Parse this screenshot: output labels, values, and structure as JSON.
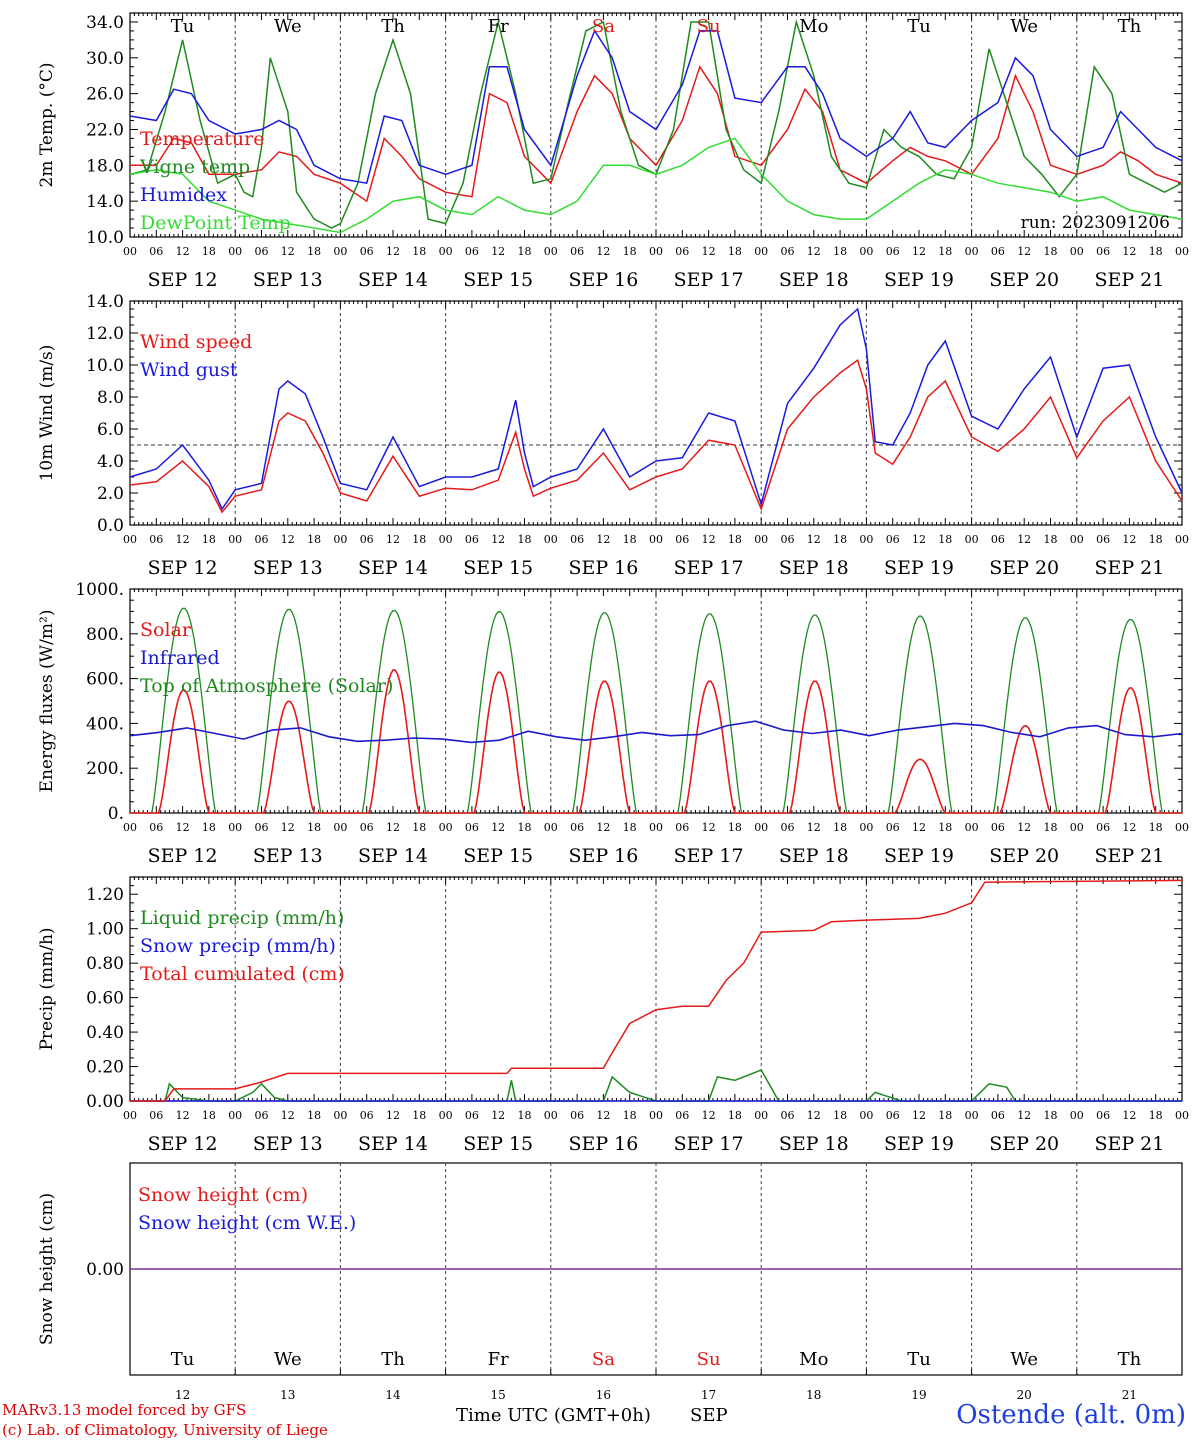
{
  "colors": {
    "red": "#e41a1a",
    "green": "#1f8a1f",
    "blue": "#1a1adc",
    "lightgreen": "#33dd33",
    "darkblue": "#1a1acc",
    "purple": "#7a2a9a",
    "station": "#1f3fe0"
  },
  "days": {
    "top": [
      "Tu",
      "We",
      "Th",
      "Fr",
      "Sa",
      "Su",
      "Mo",
      "Tu",
      "We",
      "Th"
    ],
    "numbers": [
      "12",
      "13",
      "14",
      "15",
      "16",
      "17",
      "18",
      "19",
      "20",
      "21"
    ],
    "dates": [
      "SEP 12",
      "SEP 13",
      "SEP 14",
      "SEP 15",
      "SEP 16",
      "SEP 17",
      "SEP 18",
      "SEP 19",
      "SEP 20",
      "SEP 21"
    ],
    "weekend": [
      false,
      false,
      false,
      false,
      true,
      true,
      false,
      false,
      false,
      false
    ],
    "hour_ticks": [
      "00",
      "06",
      "12",
      "18"
    ],
    "end_tick": "00"
  },
  "footer": {
    "credit1": "MARv3.13 model forced by GFS",
    "credit2": "(c) Lab. of Climatology, University of Liege",
    "time_label": "Time UTC (GMT+0h)",
    "month": "SEP",
    "station": "Ostende (alt. 0m)"
  },
  "chart_data": [
    {
      "type": "line",
      "ylabel": "2m Temp. (°C)",
      "ylim": [
        10,
        35
      ],
      "yticks": [
        "10.0",
        "14.0",
        "18.0",
        "22.0",
        "26.0",
        "30.0",
        "34.0"
      ],
      "ytick_values": [
        10,
        14,
        18,
        22,
        26,
        30,
        34
      ],
      "annotation": "run: 2023091206",
      "x_unit": "hours since Sep 12 00 UTC",
      "series": [
        {
          "name": "Temperature",
          "color": "red",
          "x": [
            0,
            6,
            10,
            14,
            18,
            24,
            30,
            34,
            38,
            42,
            48,
            54,
            58,
            62,
            66,
            72,
            78,
            82,
            86,
            90,
            96,
            102,
            106,
            110,
            114,
            120,
            126,
            130,
            134,
            138,
            144,
            150,
            154,
            158,
            162,
            168,
            174,
            178,
            182,
            186,
            192,
            198,
            202,
            206,
            210,
            216,
            222,
            226,
            230,
            234,
            240
          ],
          "y": [
            18,
            18,
            21,
            20.5,
            17,
            17,
            17.5,
            19.5,
            19,
            17,
            16,
            14,
            21,
            19,
            16.5,
            15,
            14.5,
            26,
            25,
            19,
            16,
            24,
            28,
            26,
            21,
            18,
            23,
            29,
            26,
            19,
            18,
            22,
            26.5,
            24,
            17.5,
            16,
            18.5,
            20,
            19,
            18.5,
            17,
            21,
            28,
            24,
            18,
            17,
            18,
            19.5,
            18.5,
            17,
            16
          ]
        },
        {
          "name": "Vigne temp",
          "color": "green",
          "x": [
            0,
            4,
            8,
            12,
            16,
            20,
            24,
            26,
            28,
            30,
            32,
            34,
            36,
            38,
            42,
            46,
            48,
            52,
            56,
            60,
            64,
            68,
            72,
            76,
            80,
            84,
            88,
            92,
            96,
            100,
            104,
            108,
            112,
            116,
            120,
            124,
            128,
            132,
            136,
            140,
            144,
            148,
            152,
            156,
            160,
            164,
            168,
            172,
            176,
            180,
            184,
            188,
            192,
            196,
            200,
            204,
            208,
            212,
            216,
            220,
            224,
            228,
            232,
            236,
            240
          ],
          "y": [
            17,
            17.5,
            24,
            32,
            23,
            16,
            17,
            15,
            14.5,
            20,
            30,
            27,
            24,
            15,
            12,
            11,
            11.5,
            16,
            26,
            32,
            26,
            12,
            11.5,
            16,
            26,
            34,
            26,
            16,
            16.5,
            25,
            33,
            34,
            24,
            18,
            17,
            22,
            34,
            34,
            22,
            17.5,
            16,
            24,
            34,
            28,
            19,
            16,
            15.5,
            22,
            20,
            19,
            17,
            16.5,
            20,
            31,
            25,
            19,
            17,
            14.5,
            17,
            29,
            26,
            17,
            16,
            15,
            16
          ]
        },
        {
          "name": "Humidex",
          "color": "blue",
          "x": [
            0,
            6,
            10,
            14,
            18,
            24,
            30,
            34,
            38,
            42,
            48,
            54,
            58,
            62,
            66,
            72,
            78,
            82,
            86,
            90,
            96,
            102,
            106,
            110,
            114,
            120,
            126,
            130,
            134,
            138,
            144,
            150,
            154,
            158,
            162,
            168,
            174,
            178,
            182,
            186,
            192,
            198,
            202,
            206,
            210,
            216,
            222,
            226,
            230,
            234,
            240
          ],
          "y": [
            23.5,
            23,
            26.5,
            26,
            23,
            21.5,
            22,
            23,
            22,
            18,
            16.5,
            16,
            23.5,
            23,
            18,
            17,
            18,
            29,
            29,
            22,
            18,
            28,
            33,
            30,
            24,
            22,
            27,
            33,
            33,
            25.5,
            25,
            29,
            29,
            26,
            21,
            19,
            21,
            24,
            20.5,
            20,
            23,
            25,
            30,
            28,
            22,
            19,
            20,
            24,
            22,
            20,
            18.5
          ]
        },
        {
          "name": "DewPoint Temp",
          "color": "lightgreen",
          "x": [
            0,
            6,
            12,
            18,
            24,
            30,
            36,
            42,
            48,
            54,
            60,
            66,
            72,
            78,
            84,
            90,
            96,
            102,
            108,
            114,
            120,
            126,
            132,
            138,
            144,
            150,
            156,
            162,
            168,
            174,
            180,
            186,
            192,
            198,
            204,
            210,
            216,
            222,
            228,
            234,
            240
          ],
          "y": [
            17,
            17.5,
            17,
            14,
            13,
            12,
            11.5,
            11,
            10.5,
            12,
            14,
            14.5,
            13,
            12.5,
            14.5,
            13,
            12.5,
            14,
            18,
            18,
            17,
            18,
            20,
            21,
            17,
            14,
            12.5,
            12,
            12,
            14,
            16,
            17.5,
            17,
            16,
            15.5,
            15,
            14,
            14.5,
            13,
            12.5,
            12
          ]
        }
      ]
    },
    {
      "type": "line",
      "ylabel": "10m Wind (m/s)",
      "ylim": [
        0,
        14
      ],
      "yticks": [
        "0.0",
        "2.0",
        "4.0",
        "6.0",
        "8.0",
        "10.0",
        "12.0",
        "14.0"
      ],
      "ytick_values": [
        0,
        2,
        4,
        6,
        8,
        10,
        12,
        14
      ],
      "reference_line": 5,
      "x_unit": "hours since Sep 12 00 UTC",
      "series": [
        {
          "name": "Wind speed",
          "color": "red",
          "x": [
            0,
            6,
            12,
            18,
            21,
            24,
            30,
            34,
            36,
            40,
            44,
            48,
            54,
            60,
            66,
            72,
            78,
            84,
            88,
            90,
            92,
            96,
            102,
            108,
            114,
            120,
            126,
            132,
            138,
            144,
            150,
            156,
            162,
            166,
            168,
            170,
            174,
            178,
            182,
            186,
            192,
            198,
            204,
            210,
            216,
            222,
            228,
            234,
            240
          ],
          "y": [
            2.5,
            2.7,
            4,
            2.4,
            0.8,
            1.8,
            2.2,
            6.5,
            7,
            6.5,
            4.5,
            2,
            1.5,
            4.3,
            1.8,
            2.3,
            2.2,
            2.8,
            5.8,
            3.5,
            1.8,
            2.3,
            2.8,
            4.5,
            2.2,
            3,
            3.5,
            5.3,
            5,
            1,
            6,
            8,
            9.5,
            10.3,
            8.5,
            4.5,
            3.8,
            5.5,
            8,
            9,
            5.5,
            4.6,
            6,
            8,
            4.2,
            6.5,
            8,
            4,
            1.5
          ]
        },
        {
          "name": "Wind gust",
          "color": "blue",
          "x": [
            0,
            6,
            12,
            18,
            21,
            24,
            30,
            34,
            36,
            40,
            44,
            48,
            54,
            60,
            66,
            72,
            78,
            84,
            88,
            90,
            92,
            96,
            102,
            108,
            114,
            120,
            126,
            132,
            138,
            144,
            150,
            156,
            162,
            166,
            168,
            170,
            174,
            178,
            182,
            186,
            192,
            198,
            204,
            210,
            216,
            222,
            228,
            234,
            240
          ],
          "y": [
            3,
            3.5,
            5,
            2.8,
            1,
            2.2,
            2.6,
            8.5,
            9,
            8.2,
            5.5,
            2.6,
            2.2,
            5.5,
            2.4,
            3,
            3,
            3.5,
            7.8,
            4.5,
            2.4,
            3,
            3.5,
            6,
            3,
            4,
            4.2,
            7,
            6.5,
            1.3,
            7.6,
            9.8,
            12.5,
            13.5,
            11,
            5.2,
            5,
            7,
            10,
            11.5,
            6.8,
            6,
            8.5,
            10.5,
            5.5,
            9.8,
            10,
            5.5,
            2
          ]
        }
      ]
    },
    {
      "type": "line",
      "ylabel": "Energy fluxes (W/m²)",
      "ylim": [
        0,
        1000
      ],
      "yticks": [
        "0.",
        "200.",
        "400.",
        "600.",
        "800.",
        "1000."
      ],
      "ytick_values": [
        0,
        200,
        400,
        600,
        800,
        1000
      ],
      "x_unit": "hours since Sep 12 00 UTC",
      "toa_peaks": [
        915,
        910,
        905,
        900,
        895,
        890,
        885,
        880,
        872,
        865
      ],
      "solar_peaks": [
        550,
        500,
        640,
        630,
        590,
        590,
        590,
        240,
        390,
        560
      ],
      "infrared": [
        345,
        360,
        380,
        355,
        330,
        370,
        380,
        340,
        320,
        325,
        335,
        330,
        315,
        325,
        365,
        340,
        325,
        340,
        360,
        345,
        350,
        390,
        410,
        370,
        355,
        370,
        345,
        370,
        385,
        400,
        390,
        360,
        340,
        380,
        390,
        350,
        340,
        355
      ],
      "series": [
        {
          "name": "Solar",
          "color": "red"
        },
        {
          "name": "Infrared",
          "color": "darkblue"
        },
        {
          "name": "Top of Atmosphere (Solar)",
          "color": "green"
        }
      ]
    },
    {
      "type": "line",
      "ylabel": "Precip (mm/h)",
      "ylim": [
        0,
        1.3
      ],
      "yticks": [
        "0.00",
        "0.20",
        "0.40",
        "0.60",
        "0.80",
        "1.00",
        "1.20"
      ],
      "ytick_values": [
        0,
        0.2,
        0.4,
        0.6,
        0.8,
        1.0,
        1.2
      ],
      "x_unit": "hours since Sep 12 00 UTC",
      "series": [
        {
          "name": "Liquid precip (mm/h)",
          "color": "green",
          "x": [
            0,
            8,
            9,
            12,
            18,
            24,
            28,
            30,
            33,
            36,
            48,
            72,
            86,
            87,
            88,
            96,
            108,
            110,
            114,
            120,
            132,
            134,
            138,
            144,
            148,
            168,
            170,
            176,
            180,
            192,
            196,
            200,
            202,
            240
          ],
          "y": [
            0,
            0,
            0.1,
            0.02,
            0,
            0,
            0.05,
            0.1,
            0.02,
            0,
            0,
            0,
            0,
            0.12,
            0,
            0,
            0,
            0.14,
            0.05,
            0,
            0,
            0.14,
            0.12,
            0.18,
            0,
            0,
            0.05,
            0,
            0,
            0,
            0.1,
            0.08,
            0,
            0
          ]
        },
        {
          "name": "Snow precip (mm/h)",
          "color": "blue",
          "x": [
            0,
            240
          ],
          "y": [
            0,
            0
          ]
        },
        {
          "name": "Total cumulated (cm)",
          "color": "red",
          "x": [
            0,
            8,
            10,
            24,
            30,
            36,
            48,
            60,
            72,
            86,
            87,
            90,
            108,
            110,
            114,
            120,
            126,
            132,
            136,
            140,
            144,
            156,
            160,
            168,
            180,
            186,
            192,
            195,
            240
          ],
          "y": [
            0,
            0,
            0.07,
            0.07,
            0.11,
            0.16,
            0.16,
            0.16,
            0.16,
            0.16,
            0.19,
            0.19,
            0.19,
            0.28,
            0.45,
            0.53,
            0.55,
            0.55,
            0.7,
            0.8,
            0.98,
            0.99,
            1.04,
            1.05,
            1.06,
            1.09,
            1.15,
            1.27,
            1.28
          ]
        }
      ]
    },
    {
      "type": "line",
      "ylabel": "Snow height (cm)",
      "yticks": [
        "0.00"
      ],
      "ytick_values": [
        0
      ],
      "x_unit": "hours since Sep 12 00 UTC",
      "series": [
        {
          "name": "Snow height (cm)",
          "color": "red",
          "x": [
            0,
            240
          ],
          "y": [
            0,
            0
          ]
        },
        {
          "name": "Snow height (cm W.E.)",
          "color": "blue",
          "x": [
            0,
            240
          ],
          "y": [
            0,
            0
          ]
        }
      ]
    }
  ]
}
